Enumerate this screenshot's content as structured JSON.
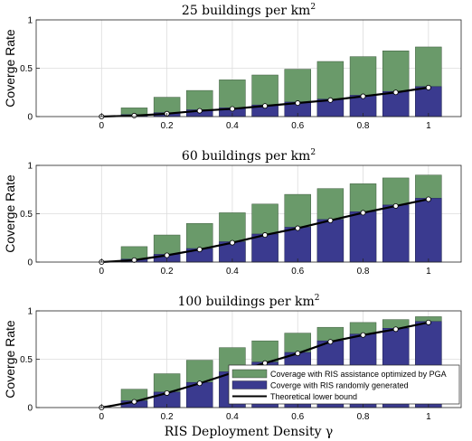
{
  "chart_data": [
    {
      "type": "bar",
      "title": "25 buildings per km",
      "title_sup": "2",
      "ylabel": "Coverge Rate",
      "x": [
        0,
        0.1,
        0.2,
        0.3,
        0.4,
        0.5,
        0.6,
        0.7,
        0.8,
        0.9,
        1.0
      ],
      "xticks": [
        "0",
        "0.2",
        "0.4",
        "0.6",
        "0.8",
        "1"
      ],
      "xtick_values": [
        0,
        0.2,
        0.4,
        0.6,
        0.8,
        1.0
      ],
      "yticks": [
        "0",
        "0.5",
        "1"
      ],
      "ytick_values": [
        0,
        0.5,
        1
      ],
      "xlim": [
        -0.2,
        1.1
      ],
      "ylim": [
        0,
        1
      ],
      "grid": true,
      "series": [
        {
          "name": "Coverage with RIS assistance optimized by PGA",
          "kind": "bar",
          "color": "#6a9a6a",
          "values": [
            0,
            0.09,
            0.2,
            0.27,
            0.38,
            0.43,
            0.49,
            0.57,
            0.62,
            0.68,
            0.72
          ]
        },
        {
          "name": "Coverge with RIS randomly generated",
          "kind": "bar",
          "color": "#3a3a8f",
          "values": [
            0,
            0.02,
            0.04,
            0.07,
            0.09,
            0.12,
            0.15,
            0.18,
            0.22,
            0.26,
            0.31
          ]
        },
        {
          "name": "Theoretical lower bound",
          "kind": "line",
          "color": "#000000",
          "values": [
            0,
            0.01,
            0.03,
            0.06,
            0.08,
            0.11,
            0.14,
            0.17,
            0.21,
            0.25,
            0.3
          ]
        }
      ]
    },
    {
      "type": "bar",
      "title": "60 buildings per km",
      "title_sup": "2",
      "ylabel": "Coverge Rate",
      "x": [
        0,
        0.1,
        0.2,
        0.3,
        0.4,
        0.5,
        0.6,
        0.7,
        0.8,
        0.9,
        1.0
      ],
      "xticks": [
        "0",
        "0.2",
        "0.4",
        "0.6",
        "0.8",
        "1"
      ],
      "xtick_values": [
        0,
        0.2,
        0.4,
        0.6,
        0.8,
        1.0
      ],
      "yticks": [
        "0",
        "0.5",
        "1"
      ],
      "ytick_values": [
        0,
        0.5,
        1
      ],
      "xlim": [
        -0.2,
        1.1
      ],
      "ylim": [
        0,
        1
      ],
      "grid": true,
      "series": [
        {
          "name": "Coverage with RIS assistance optimized by PGA",
          "kind": "bar",
          "color": "#6a9a6a",
          "values": [
            0,
            0.16,
            0.28,
            0.4,
            0.51,
            0.6,
            0.7,
            0.76,
            0.81,
            0.87,
            0.9
          ]
        },
        {
          "name": "Coverge with RIS randomly generated",
          "kind": "bar",
          "color": "#3a3a8f",
          "values": [
            0,
            0.03,
            0.08,
            0.14,
            0.21,
            0.29,
            0.36,
            0.44,
            0.52,
            0.59,
            0.66
          ]
        },
        {
          "name": "Theoretical lower bound",
          "kind": "line",
          "color": "#000000",
          "values": [
            0,
            0.02,
            0.07,
            0.13,
            0.2,
            0.28,
            0.35,
            0.43,
            0.51,
            0.58,
            0.65
          ]
        }
      ]
    },
    {
      "type": "bar",
      "title": "100 buildings per km",
      "title_sup": "2",
      "ylabel": "Coverge Rate",
      "x": [
        0,
        0.1,
        0.2,
        0.3,
        0.4,
        0.5,
        0.6,
        0.7,
        0.8,
        0.9,
        1.0
      ],
      "xticks": [
        "0",
        "0.2",
        "0.4",
        "0.6",
        "0.8",
        "1"
      ],
      "xtick_values": [
        0,
        0.2,
        0.4,
        0.6,
        0.8,
        1.0
      ],
      "yticks": [
        "0",
        "0.5",
        "1"
      ],
      "ytick_values": [
        0,
        0.5,
        1
      ],
      "xlim": [
        -0.2,
        1.1
      ],
      "ylim": [
        0,
        1
      ],
      "grid": true,
      "xlabel": "RIS Deployment Density γ",
      "legend": {
        "placement": "bottom-right"
      },
      "series": [
        {
          "name": "Coverage with RIS assistance optimized by PGA",
          "kind": "bar",
          "color": "#6a9a6a",
          "values": [
            0,
            0.19,
            0.35,
            0.49,
            0.62,
            0.69,
            0.77,
            0.83,
            0.88,
            0.91,
            0.94
          ]
        },
        {
          "name": "Coverge with RIS randomly generated",
          "kind": "bar",
          "color": "#3a3a8f",
          "values": [
            0,
            0.07,
            0.16,
            0.26,
            0.37,
            0.47,
            0.57,
            0.69,
            0.76,
            0.82,
            0.89
          ]
        },
        {
          "name": "Theoretical lower bound",
          "kind": "line",
          "color": "#000000",
          "values": [
            0,
            0.06,
            0.15,
            0.25,
            0.36,
            0.46,
            0.56,
            0.68,
            0.75,
            0.81,
            0.88
          ]
        }
      ]
    }
  ]
}
